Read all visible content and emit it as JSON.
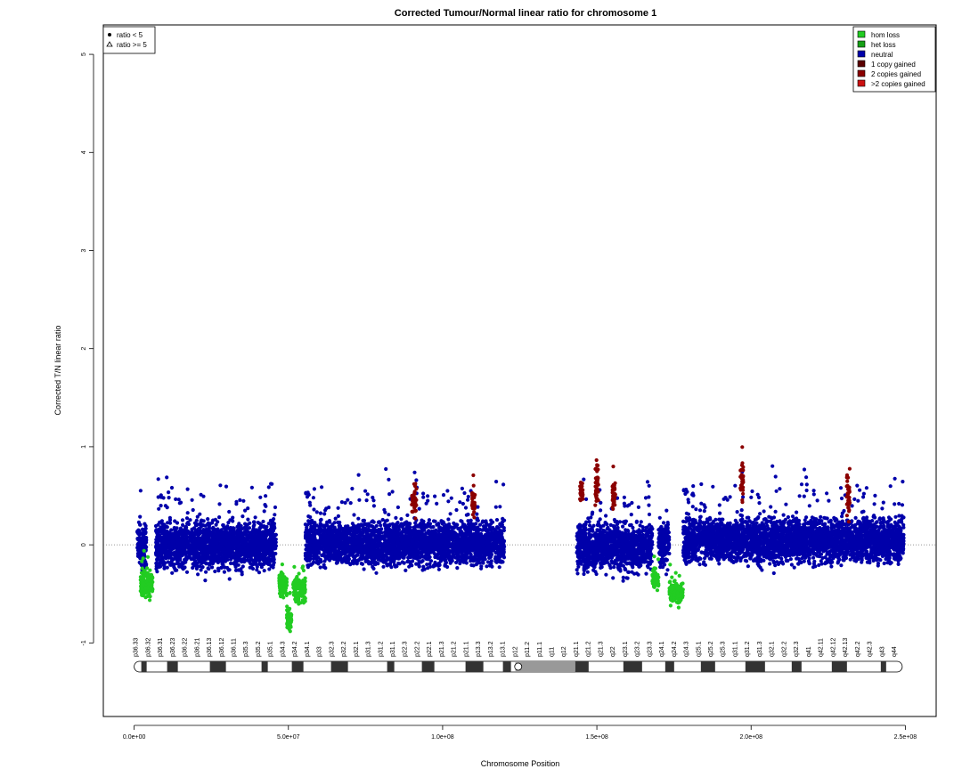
{
  "chart_data": {
    "type": "scatter",
    "title": "Corrected Tumour/Normal linear ratio for chromosome  1",
    "xlabel": "Chromosome Position",
    "ylabel": "Corrected T/N linear ratio",
    "xlim": [
      -10000000,
      260000000
    ],
    "ylim": [
      -1.75,
      5.3
    ],
    "x_ticks": [
      0,
      50000000,
      100000000,
      150000000,
      200000000,
      250000000
    ],
    "x_tick_labels": [
      "0.0e+00",
      "5.0e+07",
      "1.0e+08",
      "1.5e+08",
      "2.0e+08",
      "2.5e+08"
    ],
    "y_ticks": [
      -1,
      0,
      1,
      2,
      3,
      4,
      5
    ],
    "y_tick_labels": [
      "-1",
      "0",
      "1",
      "2",
      "3",
      "4",
      "5"
    ],
    "reference_line": 0,
    "shape_legend": {
      "position": "top-left",
      "entries": [
        {
          "symbol": "circle",
          "label": "ratio < 5"
        },
        {
          "symbol": "triangle",
          "label": "ratio >= 5"
        }
      ]
    },
    "color_legend": {
      "position": "top-right",
      "entries": [
        {
          "label": "hom loss",
          "color": "#22cc22"
        },
        {
          "label": "het loss",
          "color": "#16a016"
        },
        {
          "label": "neutral",
          "color": "#0000aa"
        },
        {
          "label": "1 copy gained",
          "color": "#5a0000"
        },
        {
          "label": "2 copies gained",
          "color": "#8b0000"
        },
        {
          "label": ">2 copies gained",
          "color": "#cc1111"
        }
      ]
    },
    "series": [
      {
        "name": "neutral",
        "color": "#0000aa",
        "segments": [
          {
            "x": [
              1000000,
              4000000
            ],
            "mean": 0.0,
            "spread": 0.3
          },
          {
            "x": [
              7000000,
              46000000
            ],
            "mean": 0.0,
            "spread": 0.3
          },
          {
            "x": [
              55500000,
              120000000
            ],
            "mean": 0.02,
            "spread": 0.28
          },
          {
            "x": [
              143500000,
              168000000
            ],
            "mean": -0.02,
            "spread": 0.3
          },
          {
            "x": [
              170000000,
              173500000
            ],
            "mean": 0.0,
            "spread": 0.3
          },
          {
            "x": [
              178000000,
              249500000
            ],
            "mean": 0.05,
            "spread": 0.28
          }
        ]
      },
      {
        "name": "het loss",
        "color": "#22cc22",
        "segments": [
          {
            "x": [
              2000000,
              6000000
            ],
            "mean": -0.4,
            "spread": 0.18
          },
          {
            "x": [
              47000000,
              49500000
            ],
            "mean": -0.4,
            "spread": 0.18
          },
          {
            "x": [
              49500000,
              51000000
            ],
            "mean": -0.75,
            "spread": 0.15
          },
          {
            "x": [
              51500000,
              55500000
            ],
            "mean": -0.45,
            "spread": 0.18
          },
          {
            "x": [
              168000000,
              170000000
            ],
            "mean": -0.35,
            "spread": 0.12
          },
          {
            "x": [
              173500000,
              178000000
            ],
            "mean": -0.48,
            "spread": 0.15
          }
        ]
      },
      {
        "name": "1 copy gained",
        "color": "#8b0000",
        "segments": [
          {
            "x": [
              90000000,
              91500000
            ],
            "mean": 0.45,
            "spread": 0.2
          },
          {
            "x": [
              109500000,
              110500000
            ],
            "mean": 0.45,
            "spread": 0.2
          },
          {
            "x": [
              144500000,
              145500000
            ],
            "mean": 0.55,
            "spread": 0.15
          },
          {
            "x": [
              149500000,
              150500000
            ],
            "mean": 0.6,
            "spread": 0.25
          },
          {
            "x": [
              155000000,
              156000000
            ],
            "mean": 0.5,
            "spread": 0.2
          },
          {
            "x": [
              196500000,
              197500000
            ],
            "mean": 0.65,
            "spread": 0.25
          },
          {
            "x": [
              231000000,
              232000000
            ],
            "mean": 0.5,
            "spread": 0.25
          }
        ]
      }
    ],
    "ideogram": {
      "labels": [
        "p36.33",
        "p36.32",
        "p36.31",
        "p36.23",
        "p36.22",
        "p36.21",
        "p36.13",
        "p36.12",
        "p36.11",
        "p35.3",
        "p35.2",
        "p35.1",
        "p34.3",
        "p34.2",
        "p34.1",
        "p33",
        "p32.3",
        "p32.2",
        "p32.1",
        "p31.3",
        "p31.2",
        "p31.1",
        "p22.3",
        "p22.2",
        "p22.1",
        "p21.3",
        "p21.2",
        "p21.1",
        "p13.3",
        "p13.2",
        "p13.1",
        "p12",
        "p11.2",
        "p11.1",
        "q11",
        "q12",
        "q21.1",
        "q21.2",
        "q21.3",
        "q22",
        "q23.1",
        "q23.2",
        "q23.3",
        "q24.1",
        "q24.2",
        "q24.3",
        "q25.1",
        "q25.2",
        "q25.3",
        "q31.1",
        "q31.2",
        "q31.3",
        "q32.1",
        "q32.2",
        "q32.3",
        "q41",
        "q42.11",
        "q42.12",
        "q42.13",
        "q42.2",
        "q42.3",
        "q43",
        "q44"
      ]
    }
  }
}
